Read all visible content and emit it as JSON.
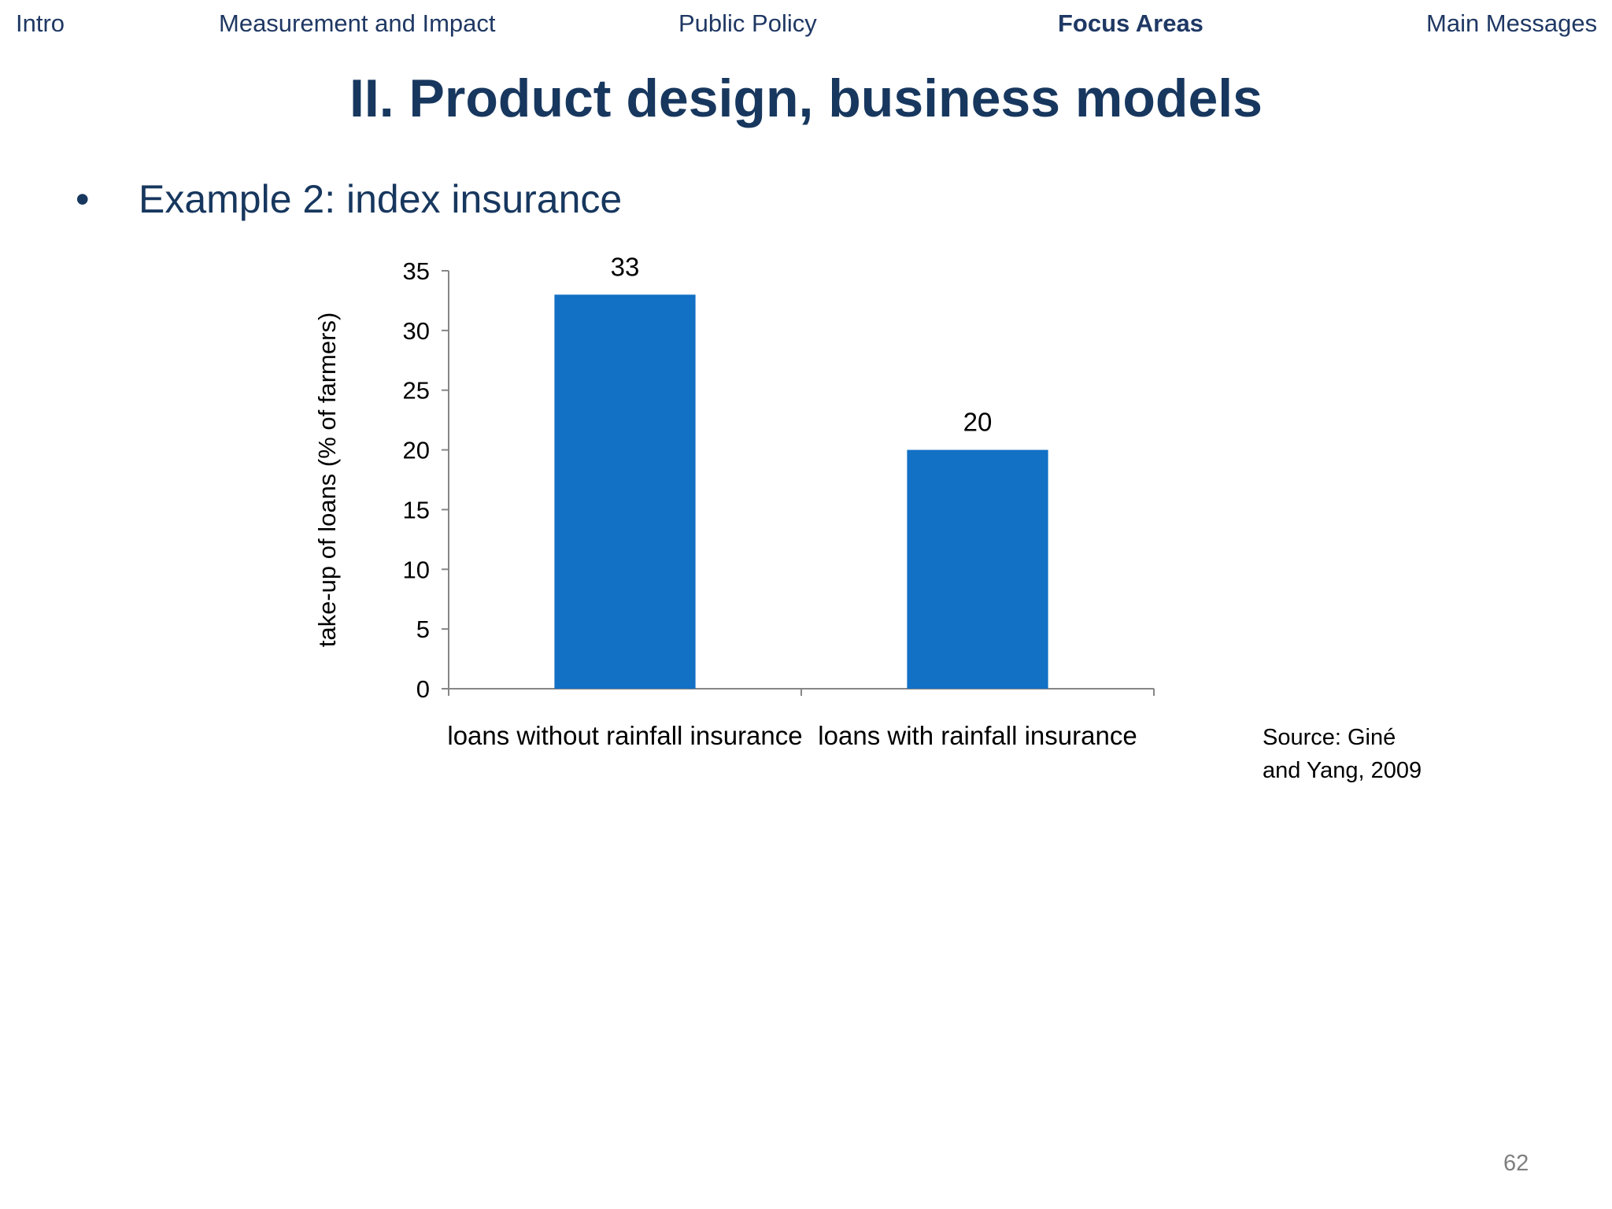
{
  "nav": {
    "items": [
      {
        "label": "Intro",
        "active": false
      },
      {
        "label": "Measurement and Impact",
        "active": false
      },
      {
        "label": "Public Policy",
        "active": false
      },
      {
        "label": "Focus Areas",
        "active": true
      },
      {
        "label": "Main Messages",
        "active": false
      }
    ]
  },
  "slide": {
    "title": "II. Product design, business models",
    "bullet_symbol": "•",
    "bullet": "Example 2: index insurance",
    "source_line1": "Source: Giné",
    "source_line2": "and Yang, 2009",
    "page_number": "62"
  },
  "colors": {
    "accent": "#1270c5",
    "title": "#17375e",
    "nav": "#1f3864",
    "axis": "#868686"
  },
  "chart_data": {
    "type": "bar",
    "categories": [
      "loans without rainfall insurance",
      "loans with rainfall insurance"
    ],
    "values": [
      33,
      20
    ],
    "data_labels": [
      "33",
      "20"
    ],
    "title": "",
    "xlabel": "",
    "ylabel": "take-up of loans (%  of farmers)",
    "ylim": [
      0,
      35
    ],
    "yticks": [
      0,
      5,
      10,
      15,
      20,
      25,
      30,
      35
    ],
    "grid": false,
    "legend": "none"
  }
}
